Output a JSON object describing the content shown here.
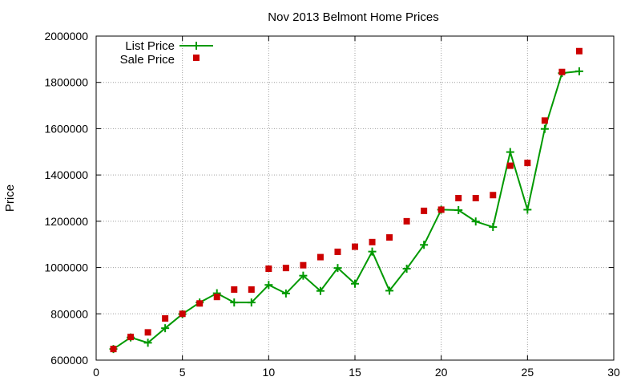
{
  "chart_data": {
    "type": "line",
    "title": "Nov 2013 Belmont Home Prices",
    "xlabel": "",
    "ylabel": "Price",
    "xlim": [
      0,
      30
    ],
    "ylim": [
      600000,
      2000000
    ],
    "x_ticks": [
      0,
      5,
      10,
      15,
      20,
      25,
      30
    ],
    "y_ticks": [
      600000,
      800000,
      1000000,
      1200000,
      1400000,
      1600000,
      1800000,
      2000000
    ],
    "grid": true,
    "legend_position": "top-left",
    "series": [
      {
        "name": "List Price",
        "style": "lines-and-plus-markers",
        "color": "#009900",
        "x": [
          1,
          2,
          3,
          4,
          5,
          6,
          7,
          8,
          9,
          10,
          11,
          12,
          13,
          14,
          15,
          16,
          17,
          18,
          19,
          20,
          21,
          22,
          23,
          24,
          25,
          26,
          27,
          28
        ],
        "values": [
          648000,
          698000,
          675000,
          738000,
          799000,
          849000,
          889000,
          849000,
          849000,
          925000,
          888000,
          965000,
          899000,
          998000,
          930000,
          1069000,
          900000,
          995000,
          1098000,
          1250000,
          1248000,
          1199000,
          1175000,
          1499000,
          1250000,
          1599000,
          1840000,
          1848000
        ]
      },
      {
        "name": "Sale Price",
        "style": "square-markers",
        "color": "#cc0000",
        "x": [
          1,
          2,
          3,
          4,
          5,
          6,
          7,
          8,
          9,
          10,
          11,
          12,
          13,
          14,
          15,
          16,
          17,
          18,
          19,
          20,
          21,
          22,
          23,
          24,
          25,
          26,
          27,
          28
        ],
        "values": [
          648000,
          700000,
          720000,
          780000,
          800000,
          845000,
          873000,
          905000,
          905000,
          995000,
          998000,
          1010000,
          1045000,
          1068000,
          1090000,
          1110000,
          1130000,
          1200000,
          1245000,
          1250000,
          1300000,
          1300000,
          1313000,
          1440000,
          1452000,
          1635000,
          1845000,
          1935000
        ]
      }
    ]
  }
}
